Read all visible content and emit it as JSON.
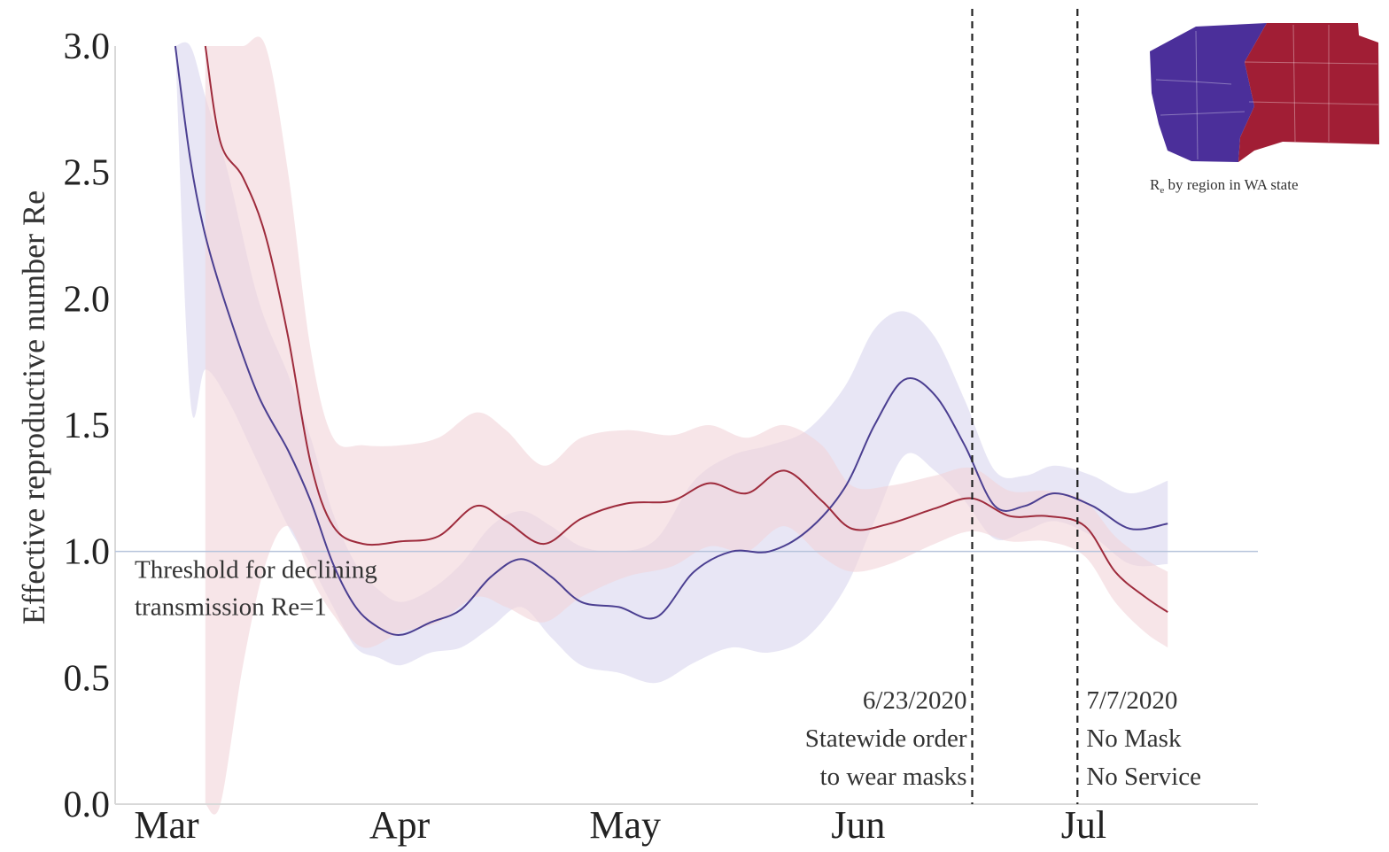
{
  "chart_data": {
    "type": "line",
    "title": "",
    "xlabel": "",
    "ylabel": "Effective reproductive number Re",
    "ylim": [
      0,
      3.0
    ],
    "x_axis": {
      "start": "2020-03-01",
      "end": "2020-07-31",
      "ticks": [
        {
          "label": "Mar",
          "date": "2020-03-01"
        },
        {
          "label": "Apr",
          "date": "2020-04-01"
        },
        {
          "label": "May",
          "date": "2020-05-01"
        },
        {
          "label": "Jun",
          "date": "2020-06-01"
        },
        {
          "label": "Jul",
          "date": "2020-07-01"
        }
      ]
    },
    "y_ticks": [
      "0.0",
      "0.5",
      "1.0",
      "1.5",
      "2.0",
      "2.5",
      "3.0"
    ],
    "grid": false,
    "colors": {
      "west": "#4b3f91",
      "east": "#9e2b3c",
      "threshold": "#b7c4dc"
    },
    "series": [
      {
        "id": "west",
        "color": "#4b3f91",
        "band_color": "#d9d6ee",
        "points": [
          [
            "2020-03-09",
            3.0,
            3.0,
            3.0
          ],
          [
            "2020-03-11",
            2.55,
            1.6,
            3.0
          ],
          [
            "2020-03-13",
            2.25,
            1.72,
            2.8
          ],
          [
            "2020-03-16",
            1.95,
            1.6,
            2.5
          ],
          [
            "2020-03-20",
            1.62,
            1.35,
            2.0
          ],
          [
            "2020-03-24",
            1.4,
            1.1,
            1.7
          ],
          [
            "2020-03-27",
            1.2,
            0.95,
            1.45
          ],
          [
            "2020-03-30",
            0.95,
            0.78,
            1.15
          ],
          [
            "2020-04-02",
            0.78,
            0.62,
            0.95
          ],
          [
            "2020-04-05",
            0.7,
            0.58,
            0.85
          ],
          [
            "2020-04-08",
            0.67,
            0.55,
            0.8
          ],
          [
            "2020-04-12",
            0.72,
            0.6,
            0.85
          ],
          [
            "2020-04-16",
            0.77,
            0.62,
            0.95
          ],
          [
            "2020-04-20",
            0.9,
            0.7,
            1.1
          ],
          [
            "2020-04-24",
            0.97,
            0.78,
            1.16
          ],
          [
            "2020-04-28",
            0.9,
            0.66,
            1.1
          ],
          [
            "2020-05-02",
            0.8,
            0.55,
            1.02
          ],
          [
            "2020-05-07",
            0.78,
            0.52,
            1.0
          ],
          [
            "2020-05-12",
            0.74,
            0.48,
            1.05
          ],
          [
            "2020-05-17",
            0.92,
            0.56,
            1.28
          ],
          [
            "2020-05-22",
            1.0,
            0.62,
            1.38
          ],
          [
            "2020-05-27",
            1.0,
            0.6,
            1.42
          ],
          [
            "2020-06-01",
            1.08,
            0.66,
            1.48
          ],
          [
            "2020-06-06",
            1.25,
            0.85,
            1.65
          ],
          [
            "2020-06-10",
            1.5,
            1.12,
            1.88
          ],
          [
            "2020-06-14",
            1.68,
            1.38,
            1.95
          ],
          [
            "2020-06-18",
            1.62,
            1.32,
            1.85
          ],
          [
            "2020-06-22",
            1.42,
            1.2,
            1.6
          ],
          [
            "2020-06-26",
            1.18,
            1.05,
            1.32
          ],
          [
            "2020-06-30",
            1.18,
            1.08,
            1.3
          ],
          [
            "2020-07-04",
            1.23,
            1.12,
            1.34
          ],
          [
            "2020-07-09",
            1.18,
            1.06,
            1.3
          ],
          [
            "2020-07-14",
            1.09,
            0.95,
            1.23
          ],
          [
            "2020-07-19",
            1.11,
            0.95,
            1.28
          ]
        ]
      },
      {
        "id": "east",
        "color": "#9e2b3c",
        "band_color": "#f1d4d9",
        "points": [
          [
            "2020-03-13",
            3.0,
            0.0,
            3.0
          ],
          [
            "2020-03-15",
            2.62,
            0.0,
            3.0
          ],
          [
            "2020-03-18",
            2.48,
            0.55,
            3.0
          ],
          [
            "2020-03-21",
            2.25,
            0.95,
            3.0
          ],
          [
            "2020-03-24",
            1.85,
            1.1,
            2.5
          ],
          [
            "2020-03-27",
            1.35,
            0.9,
            1.8
          ],
          [
            "2020-03-30",
            1.1,
            0.75,
            1.45
          ],
          [
            "2020-04-03",
            1.03,
            0.62,
            1.42
          ],
          [
            "2020-04-08",
            1.04,
            0.68,
            1.42
          ],
          [
            "2020-04-13",
            1.06,
            0.72,
            1.45
          ],
          [
            "2020-04-18",
            1.18,
            0.82,
            1.55
          ],
          [
            "2020-04-22",
            1.12,
            0.78,
            1.48
          ],
          [
            "2020-04-27",
            1.03,
            0.72,
            1.34
          ],
          [
            "2020-05-02",
            1.13,
            0.82,
            1.45
          ],
          [
            "2020-05-08",
            1.19,
            0.9,
            1.48
          ],
          [
            "2020-05-14",
            1.2,
            0.94,
            1.46
          ],
          [
            "2020-05-19",
            1.27,
            1.02,
            1.5
          ],
          [
            "2020-05-24",
            1.23,
            1.0,
            1.45
          ],
          [
            "2020-05-29",
            1.32,
            1.1,
            1.5
          ],
          [
            "2020-06-03",
            1.2,
            0.98,
            1.42
          ],
          [
            "2020-06-07",
            1.09,
            0.92,
            1.26
          ],
          [
            "2020-06-12",
            1.11,
            0.95,
            1.26
          ],
          [
            "2020-06-18",
            1.17,
            1.03,
            1.3
          ],
          [
            "2020-06-23",
            1.21,
            1.08,
            1.33
          ],
          [
            "2020-06-28",
            1.14,
            1.04,
            1.24
          ],
          [
            "2020-07-03",
            1.14,
            1.04,
            1.24
          ],
          [
            "2020-07-08",
            1.1,
            0.98,
            1.2
          ],
          [
            "2020-07-12",
            0.92,
            0.8,
            1.06
          ],
          [
            "2020-07-16",
            0.82,
            0.68,
            0.97
          ],
          [
            "2020-07-19",
            0.76,
            0.62,
            0.92
          ]
        ]
      }
    ],
    "reference_line": {
      "y": 1.0,
      "label_line1": "Threshold for declining",
      "label_line2": "transmission Re=1"
    },
    "events": [
      {
        "date": "2020-06-23",
        "lines": [
          "6/23/2020",
          "Statewide order",
          "to wear masks"
        ]
      },
      {
        "date": "2020-07-07",
        "lines": [
          "7/7/2020",
          "No Mask",
          "No Service"
        ]
      }
    ],
    "inset": {
      "caption_main": "R",
      "caption_sub": "e",
      "caption_rest": " by region in WA state",
      "west_color": "#4b2f9a",
      "east_color": "#a11e35"
    }
  }
}
